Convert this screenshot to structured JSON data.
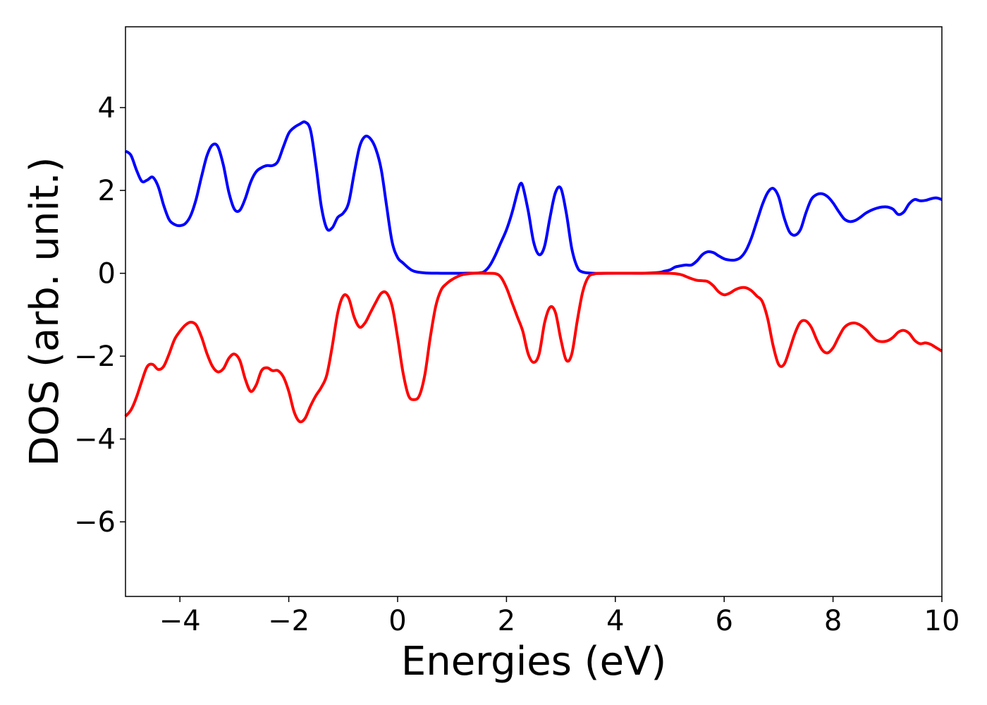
{
  "chart_data": {
    "type": "line",
    "title": "",
    "xlabel": "Energies (eV)",
    "ylabel": "DOS (arb. unit.)",
    "xlim": [
      -5,
      10
    ],
    "ylim": [
      -7.8,
      5.95
    ],
    "xticks": [
      -4,
      -2,
      0,
      2,
      4,
      6,
      8,
      10
    ],
    "yticks": [
      -6,
      -4,
      -2,
      0,
      2,
      4
    ],
    "grid": false,
    "legend": "none",
    "series": [
      {
        "color": "#0000ff",
        "points": [
          [
            -5.0,
            2.95
          ],
          [
            -4.9,
            2.85
          ],
          [
            -4.8,
            2.5
          ],
          [
            -4.7,
            2.22
          ],
          [
            -4.6,
            2.25
          ],
          [
            -4.5,
            2.32
          ],
          [
            -4.4,
            2.1
          ],
          [
            -4.3,
            1.65
          ],
          [
            -4.2,
            1.3
          ],
          [
            -4.1,
            1.18
          ],
          [
            -4.0,
            1.15
          ],
          [
            -3.9,
            1.2
          ],
          [
            -3.8,
            1.4
          ],
          [
            -3.7,
            1.8
          ],
          [
            -3.6,
            2.35
          ],
          [
            -3.5,
            2.85
          ],
          [
            -3.4,
            3.1
          ],
          [
            -3.3,
            3.05
          ],
          [
            -3.2,
            2.6
          ],
          [
            -3.1,
            1.95
          ],
          [
            -3.0,
            1.55
          ],
          [
            -2.9,
            1.52
          ],
          [
            -2.8,
            1.8
          ],
          [
            -2.7,
            2.2
          ],
          [
            -2.6,
            2.45
          ],
          [
            -2.5,
            2.55
          ],
          [
            -2.4,
            2.6
          ],
          [
            -2.3,
            2.6
          ],
          [
            -2.2,
            2.7
          ],
          [
            -2.1,
            3.05
          ],
          [
            -2.0,
            3.38
          ],
          [
            -1.9,
            3.52
          ],
          [
            -1.8,
            3.6
          ],
          [
            -1.7,
            3.65
          ],
          [
            -1.6,
            3.45
          ],
          [
            -1.5,
            2.6
          ],
          [
            -1.4,
            1.6
          ],
          [
            -1.3,
            1.08
          ],
          [
            -1.2,
            1.1
          ],
          [
            -1.1,
            1.35
          ],
          [
            -1.0,
            1.45
          ],
          [
            -0.9,
            1.7
          ],
          [
            -0.8,
            2.4
          ],
          [
            -0.7,
            3.05
          ],
          [
            -0.6,
            3.3
          ],
          [
            -0.5,
            3.25
          ],
          [
            -0.4,
            3.0
          ],
          [
            -0.3,
            2.5
          ],
          [
            -0.2,
            1.6
          ],
          [
            -0.1,
            0.75
          ],
          [
            0.0,
            0.38
          ],
          [
            0.1,
            0.25
          ],
          [
            0.2,
            0.13
          ],
          [
            0.3,
            0.05
          ],
          [
            0.5,
            0.01
          ],
          [
            0.8,
            0.0
          ],
          [
            1.2,
            0.0
          ],
          [
            1.5,
            0.01
          ],
          [
            1.6,
            0.05
          ],
          [
            1.7,
            0.2
          ],
          [
            1.8,
            0.45
          ],
          [
            1.9,
            0.75
          ],
          [
            2.0,
            1.05
          ],
          [
            2.1,
            1.45
          ],
          [
            2.2,
            1.95
          ],
          [
            2.25,
            2.15
          ],
          [
            2.3,
            2.1
          ],
          [
            2.4,
            1.5
          ],
          [
            2.5,
            0.75
          ],
          [
            2.6,
            0.45
          ],
          [
            2.7,
            0.65
          ],
          [
            2.8,
            1.35
          ],
          [
            2.9,
            1.95
          ],
          [
            3.0,
            2.05
          ],
          [
            3.1,
            1.45
          ],
          [
            3.2,
            0.6
          ],
          [
            3.3,
            0.15
          ],
          [
            3.4,
            0.03
          ],
          [
            3.6,
            0.0
          ],
          [
            4.0,
            0.0
          ],
          [
            4.5,
            0.0
          ],
          [
            4.8,
            0.02
          ],
          [
            4.9,
            0.05
          ],
          [
            5.0,
            0.08
          ],
          [
            5.1,
            0.15
          ],
          [
            5.2,
            0.18
          ],
          [
            5.3,
            0.2
          ],
          [
            5.4,
            0.2
          ],
          [
            5.5,
            0.3
          ],
          [
            5.6,
            0.45
          ],
          [
            5.7,
            0.52
          ],
          [
            5.8,
            0.5
          ],
          [
            5.9,
            0.42
          ],
          [
            6.0,
            0.35
          ],
          [
            6.1,
            0.32
          ],
          [
            6.2,
            0.32
          ],
          [
            6.3,
            0.38
          ],
          [
            6.4,
            0.55
          ],
          [
            6.5,
            0.85
          ],
          [
            6.6,
            1.25
          ],
          [
            6.7,
            1.65
          ],
          [
            6.8,
            1.95
          ],
          [
            6.9,
            2.05
          ],
          [
            7.0,
            1.85
          ],
          [
            7.1,
            1.35
          ],
          [
            7.2,
            1.0
          ],
          [
            7.3,
            0.92
          ],
          [
            7.4,
            1.05
          ],
          [
            7.5,
            1.45
          ],
          [
            7.6,
            1.78
          ],
          [
            7.7,
            1.9
          ],
          [
            7.8,
            1.92
          ],
          [
            7.9,
            1.85
          ],
          [
            8.0,
            1.7
          ],
          [
            8.1,
            1.5
          ],
          [
            8.2,
            1.32
          ],
          [
            8.3,
            1.25
          ],
          [
            8.4,
            1.27
          ],
          [
            8.5,
            1.35
          ],
          [
            8.6,
            1.45
          ],
          [
            8.7,
            1.52
          ],
          [
            8.8,
            1.57
          ],
          [
            8.9,
            1.6
          ],
          [
            9.0,
            1.6
          ],
          [
            9.1,
            1.55
          ],
          [
            9.2,
            1.42
          ],
          [
            9.3,
            1.48
          ],
          [
            9.4,
            1.68
          ],
          [
            9.5,
            1.78
          ],
          [
            9.6,
            1.75
          ],
          [
            9.7,
            1.76
          ],
          [
            9.8,
            1.8
          ],
          [
            9.9,
            1.82
          ],
          [
            10.0,
            1.78
          ]
        ]
      },
      {
        "color": "#ff0000",
        "points": [
          [
            -5.0,
            -3.45
          ],
          [
            -4.9,
            -3.3
          ],
          [
            -4.8,
            -3.0
          ],
          [
            -4.7,
            -2.6
          ],
          [
            -4.6,
            -2.25
          ],
          [
            -4.5,
            -2.2
          ],
          [
            -4.4,
            -2.32
          ],
          [
            -4.3,
            -2.25
          ],
          [
            -4.2,
            -1.95
          ],
          [
            -4.1,
            -1.6
          ],
          [
            -4.0,
            -1.4
          ],
          [
            -3.9,
            -1.25
          ],
          [
            -3.8,
            -1.18
          ],
          [
            -3.7,
            -1.25
          ],
          [
            -3.6,
            -1.55
          ],
          [
            -3.5,
            -1.95
          ],
          [
            -3.4,
            -2.25
          ],
          [
            -3.3,
            -2.38
          ],
          [
            -3.2,
            -2.3
          ],
          [
            -3.1,
            -2.05
          ],
          [
            -3.0,
            -1.95
          ],
          [
            -2.9,
            -2.1
          ],
          [
            -2.8,
            -2.55
          ],
          [
            -2.7,
            -2.85
          ],
          [
            -2.6,
            -2.7
          ],
          [
            -2.5,
            -2.35
          ],
          [
            -2.4,
            -2.28
          ],
          [
            -2.3,
            -2.35
          ],
          [
            -2.2,
            -2.35
          ],
          [
            -2.1,
            -2.5
          ],
          [
            -2.0,
            -2.85
          ],
          [
            -1.9,
            -3.35
          ],
          [
            -1.8,
            -3.58
          ],
          [
            -1.7,
            -3.5
          ],
          [
            -1.6,
            -3.2
          ],
          [
            -1.5,
            -2.95
          ],
          [
            -1.4,
            -2.75
          ],
          [
            -1.3,
            -2.45
          ],
          [
            -1.2,
            -1.75
          ],
          [
            -1.1,
            -0.95
          ],
          [
            -1.0,
            -0.55
          ],
          [
            -0.9,
            -0.6
          ],
          [
            -0.8,
            -1.05
          ],
          [
            -0.7,
            -1.3
          ],
          [
            -0.6,
            -1.2
          ],
          [
            -0.5,
            -0.95
          ],
          [
            -0.4,
            -0.7
          ],
          [
            -0.3,
            -0.48
          ],
          [
            -0.2,
            -0.48
          ],
          [
            -0.1,
            -0.8
          ],
          [
            0.0,
            -1.55
          ],
          [
            0.1,
            -2.4
          ],
          [
            0.2,
            -2.95
          ],
          [
            0.3,
            -3.05
          ],
          [
            0.4,
            -2.95
          ],
          [
            0.5,
            -2.45
          ],
          [
            0.6,
            -1.55
          ],
          [
            0.7,
            -0.8
          ],
          [
            0.8,
            -0.4
          ],
          [
            0.9,
            -0.25
          ],
          [
            1.0,
            -0.15
          ],
          [
            1.1,
            -0.08
          ],
          [
            1.2,
            -0.03
          ],
          [
            1.4,
            -0.0
          ],
          [
            1.6,
            -0.0
          ],
          [
            1.8,
            -0.01
          ],
          [
            1.9,
            -0.1
          ],
          [
            2.0,
            -0.35
          ],
          [
            2.1,
            -0.7
          ],
          [
            2.2,
            -1.05
          ],
          [
            2.3,
            -1.4
          ],
          [
            2.4,
            -1.95
          ],
          [
            2.5,
            -2.15
          ],
          [
            2.6,
            -1.95
          ],
          [
            2.7,
            -1.2
          ],
          [
            2.8,
            -0.82
          ],
          [
            2.9,
            -0.95
          ],
          [
            3.0,
            -1.6
          ],
          [
            3.1,
            -2.1
          ],
          [
            3.2,
            -1.95
          ],
          [
            3.3,
            -1.15
          ],
          [
            3.4,
            -0.45
          ],
          [
            3.5,
            -0.1
          ],
          [
            3.6,
            -0.02
          ],
          [
            3.8,
            -0.0
          ],
          [
            4.5,
            -0.0
          ],
          [
            5.0,
            -0.0
          ],
          [
            5.2,
            -0.03
          ],
          [
            5.3,
            -0.08
          ],
          [
            5.4,
            -0.13
          ],
          [
            5.5,
            -0.17
          ],
          [
            5.6,
            -0.18
          ],
          [
            5.7,
            -0.2
          ],
          [
            5.8,
            -0.3
          ],
          [
            5.9,
            -0.45
          ],
          [
            6.0,
            -0.52
          ],
          [
            6.1,
            -0.48
          ],
          [
            6.2,
            -0.4
          ],
          [
            6.3,
            -0.35
          ],
          [
            6.4,
            -0.35
          ],
          [
            6.5,
            -0.42
          ],
          [
            6.6,
            -0.55
          ],
          [
            6.7,
            -0.68
          ],
          [
            6.8,
            -1.1
          ],
          [
            6.9,
            -1.75
          ],
          [
            7.0,
            -2.2
          ],
          [
            7.1,
            -2.2
          ],
          [
            7.2,
            -1.85
          ],
          [
            7.3,
            -1.45
          ],
          [
            7.4,
            -1.18
          ],
          [
            7.5,
            -1.15
          ],
          [
            7.6,
            -1.3
          ],
          [
            7.7,
            -1.6
          ],
          [
            7.8,
            -1.85
          ],
          [
            7.9,
            -1.92
          ],
          [
            8.0,
            -1.8
          ],
          [
            8.1,
            -1.55
          ],
          [
            8.2,
            -1.32
          ],
          [
            8.3,
            -1.22
          ],
          [
            8.4,
            -1.2
          ],
          [
            8.5,
            -1.25
          ],
          [
            8.6,
            -1.35
          ],
          [
            8.7,
            -1.5
          ],
          [
            8.8,
            -1.62
          ],
          [
            8.9,
            -1.65
          ],
          [
            9.0,
            -1.63
          ],
          [
            9.1,
            -1.55
          ],
          [
            9.2,
            -1.42
          ],
          [
            9.3,
            -1.38
          ],
          [
            9.4,
            -1.45
          ],
          [
            9.5,
            -1.62
          ],
          [
            9.6,
            -1.7
          ],
          [
            9.7,
            -1.68
          ],
          [
            9.8,
            -1.72
          ],
          [
            9.9,
            -1.8
          ],
          [
            10.0,
            -1.88
          ]
        ]
      }
    ]
  }
}
